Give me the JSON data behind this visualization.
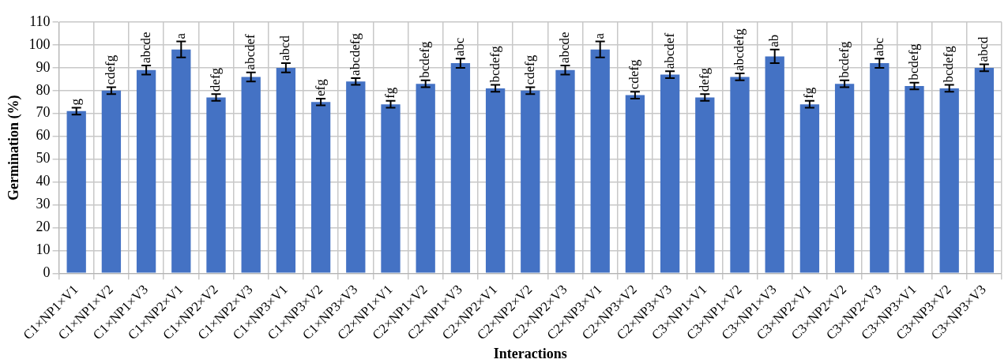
{
  "chart_data": {
    "type": "bar",
    "xlabel": "Interactions",
    "ylabel": "Germination (%)",
    "categories": [
      "C1×NP1×V1",
      "C1×NP1×V2",
      "C1×NP1×V3",
      "C1×NP2×V1",
      "C1×NP2×V2",
      "C1×NP2×V3",
      "C1×NP3×V1",
      "C1×NP3×V2",
      "C1×NP3×V3",
      "C2×NP1×V1",
      "C2×NP1×V2",
      "C2×NP1×V3",
      "C2×NP2×V1",
      "C2×NP2×V2",
      "C2×NP2×V3",
      "C2×NP3×V1",
      "C2×NP3×V2",
      "C2×NP3×V3",
      "C3×NP1×V1",
      "C3×NP1×V2",
      "C3×NP1×V3",
      "C3×NP2×V1",
      "C3×NP2×V2",
      "C3×NP2×V3",
      "C3×NP3×V1",
      "C3×NP3×V2",
      "C3×NP3×V3"
    ],
    "values": [
      71,
      80,
      89,
      98,
      77,
      86,
      90,
      75,
      84,
      74,
      83,
      92,
      81,
      80,
      89,
      98,
      78,
      87,
      77,
      86,
      95,
      74,
      83,
      92,
      82,
      81,
      90
    ],
    "errors": [
      1.5,
      1.5,
      2,
      3.5,
      1.5,
      2,
      2,
      1.5,
      1.5,
      1.5,
      1.5,
      2,
      1.5,
      1.5,
      2,
      3.5,
      1.5,
      1.5,
      1.5,
      1.5,
      3,
      1.5,
      1.5,
      2,
      1.5,
      1.5,
      1.5
    ],
    "value_labels": [
      "g",
      "cdefg",
      "abcde",
      "a",
      "defg",
      "abcdef",
      "abcd",
      "efg",
      "abcdefg",
      "fg",
      "bcdefg",
      "abc",
      "bcdefg",
      "cdefg",
      "abcde",
      "a",
      "cdefg",
      "abcdef",
      "defg",
      "abcdefg",
      "ab",
      "fg",
      "bcdefg",
      "abc",
      "bcdefg",
      "bcdefg",
      "abcd"
    ],
    "color": "#4472c4",
    "ylim": [
      0,
      110
    ],
    "yticks": [
      0,
      10,
      20,
      30,
      40,
      50,
      60,
      70,
      80,
      90,
      100,
      110
    ],
    "grid": true,
    "legend": false
  }
}
